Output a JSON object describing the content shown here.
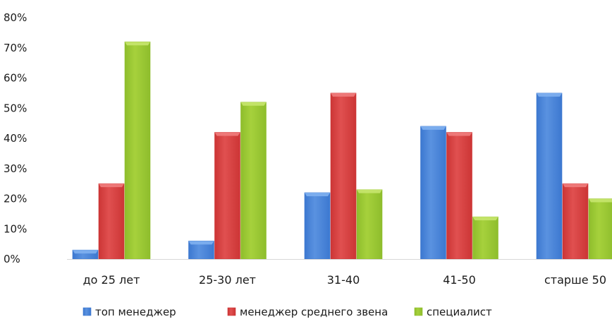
{
  "chart_data": {
    "type": "bar",
    "title": "",
    "xlabel": "",
    "ylabel": "",
    "ylim": [
      0,
      80
    ],
    "yticks": [
      0,
      10,
      20,
      30,
      40,
      50,
      60,
      70,
      80
    ],
    "ytick_labels": [
      "0%",
      "10%",
      "20%",
      "30%",
      "40%",
      "50%",
      "60%",
      "70%",
      "80%"
    ],
    "categories": [
      "до 25 лет",
      "25-30 лет",
      "31-40",
      "41-50",
      "старше 50"
    ],
    "series": [
      {
        "name": "топ менеджер",
        "values": [
          3,
          6,
          22,
          44,
          55
        ],
        "color": "#3c78d0",
        "color_light": "#5a92e0",
        "color_top": "#7fb0f0"
      },
      {
        "name": "менеджер среднего звена",
        "values": [
          25,
          42,
          55,
          42,
          25
        ],
        "color": "#cc3535",
        "color_light": "#e05050",
        "color_top": "#f07d7d"
      },
      {
        "name": "специалист",
        "values": [
          72,
          52,
          23,
          14,
          20
        ],
        "color": "#8ebd2c",
        "color_light": "#a6d13c",
        "color_top": "#c6e66e"
      }
    ],
    "grid": false,
    "legend_position": "bottom"
  }
}
